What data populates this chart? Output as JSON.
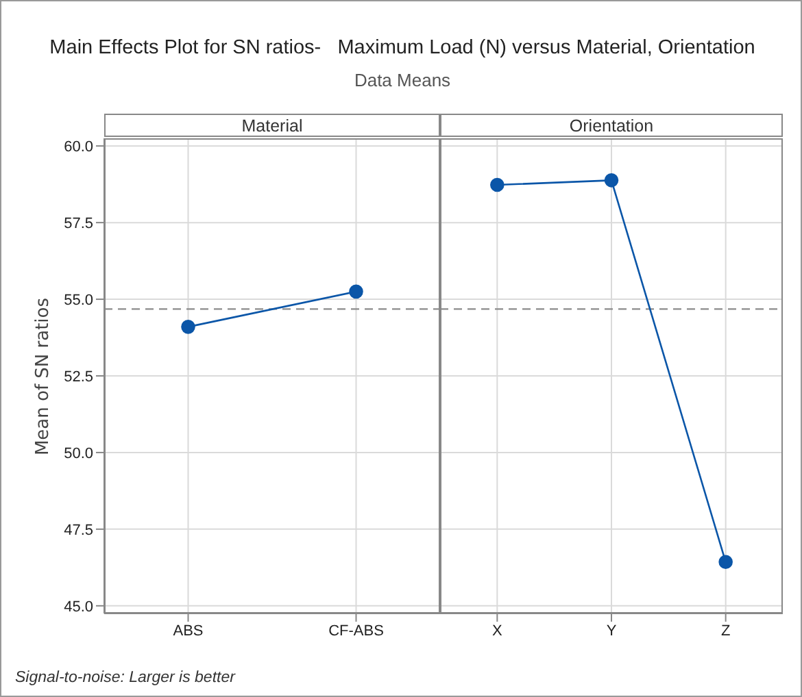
{
  "chart_data": [
    {
      "type": "other",
      "title": "Main Effects Plot for SN ratios-   Maximum Load (N) versus Material, Orientation",
      "subtitle": "Data Means",
      "annotations": [
        "Signal-to-noise: Larger is better"
      ]
    },
    {
      "type": "line",
      "title": "Material",
      "ylabel": "Mean of SN ratios",
      "categories": [
        "ABS",
        "CF-ABS"
      ],
      "values": [
        54.1,
        55.25
      ],
      "color": "#0b56a8",
      "marker": "circle",
      "grid": true,
      "ylim": [
        44.75,
        60.25
      ],
      "yticks": [
        {
          "value": 45,
          "label": "45.0"
        },
        {
          "value": 47.5,
          "label": "47.5"
        },
        {
          "value": 50,
          "label": "50.0"
        },
        {
          "value": 52.5,
          "label": "52.5"
        },
        {
          "value": 55,
          "label": "55.0"
        },
        {
          "value": 57.5,
          "label": "57.5"
        },
        {
          "value": 60,
          "label": "60.0"
        }
      ],
      "ref_lines": [
        {
          "axis": "y",
          "value": 54.68,
          "color": "#8c8c8c",
          "line_style": "dashed"
        }
      ]
    },
    {
      "type": "line",
      "title": "Orientation",
      "categories": [
        "X",
        "Y",
        "Z"
      ],
      "values": [
        58.73,
        58.88,
        46.43
      ],
      "color": "#0b56a8",
      "marker": "circle",
      "grid": true,
      "tick_labels": "x",
      "ylim": [
        44.75,
        60.25
      ],
      "yticks": [
        45,
        47.5,
        50,
        52.5,
        55,
        57.5,
        60
      ],
      "ref_lines": [
        {
          "axis": "y",
          "value": 54.68,
          "color": "#8c8c8c",
          "line_style": "dashed"
        }
      ]
    }
  ]
}
